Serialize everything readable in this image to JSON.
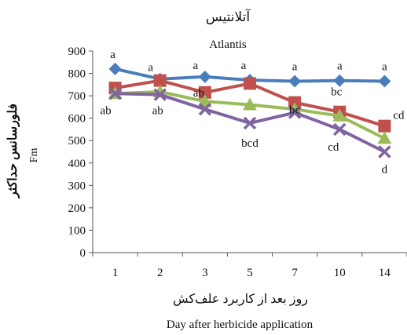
{
  "chart_data": {
    "type": "line",
    "title": "آتلانتیس",
    "subtitle": "Atlantis",
    "xlabel": "روز بعد از کاربرد علف‌کش",
    "xlabel_en": "Day after herbicide application",
    "ylabel": "فلورسانس حداکثر",
    "ylabel_en": "Fm",
    "categories": [
      "1",
      "2",
      "3",
      "5",
      "7",
      "10",
      "14"
    ],
    "ylim": [
      0,
      900
    ],
    "yticks": [
      0,
      100,
      200,
      300,
      400,
      500,
      600,
      700,
      800,
      900
    ],
    "grid": false,
    "legend": "none",
    "series": [
      {
        "color": "#4a7ebb",
        "marker": "diamond",
        "values": [
          820,
          775,
          785,
          770,
          765,
          768,
          765
        ]
      },
      {
        "color": "#c0504d",
        "marker": "square",
        "values": [
          735,
          768,
          715,
          755,
          670,
          628,
          565
        ]
      },
      {
        "color": "#9bbb59",
        "marker": "triangle",
        "values": [
          710,
          718,
          675,
          660,
          640,
          610,
          510
        ]
      },
      {
        "color": "#8064a2",
        "marker": "x",
        "values": [
          710,
          705,
          640,
          578,
          625,
          550,
          450
        ]
      }
    ],
    "annotations": [
      {
        "text": "a",
        "x": "1",
        "y": 820
      },
      {
        "text": "a",
        "x": "2",
        "y": 775
      },
      {
        "text": "a",
        "x": "3",
        "y": 785
      },
      {
        "text": "a",
        "x": "5",
        "y": 770
      },
      {
        "text": "a",
        "x": "7",
        "y": 765
      },
      {
        "text": "a",
        "x": "10",
        "y": 768
      },
      {
        "text": "a",
        "x": "14",
        "y": 765
      },
      {
        "text": "ab",
        "x": "1",
        "y": 710
      },
      {
        "text": "ab",
        "x": "2",
        "y": 705
      },
      {
        "text": "ab",
        "x": "3",
        "y": 715
      },
      {
        "text": "bcd",
        "x": "5",
        "y": 578
      },
      {
        "text": "bc",
        "x": "7",
        "y": 670
      },
      {
        "text": "bc",
        "x": "10",
        "y": 628
      },
      {
        "text": "cd",
        "x": "10",
        "y": 550
      },
      {
        "text": "cd",
        "x": "14",
        "y": 565
      },
      {
        "text": "d",
        "x": "14",
        "y": 450
      }
    ]
  }
}
